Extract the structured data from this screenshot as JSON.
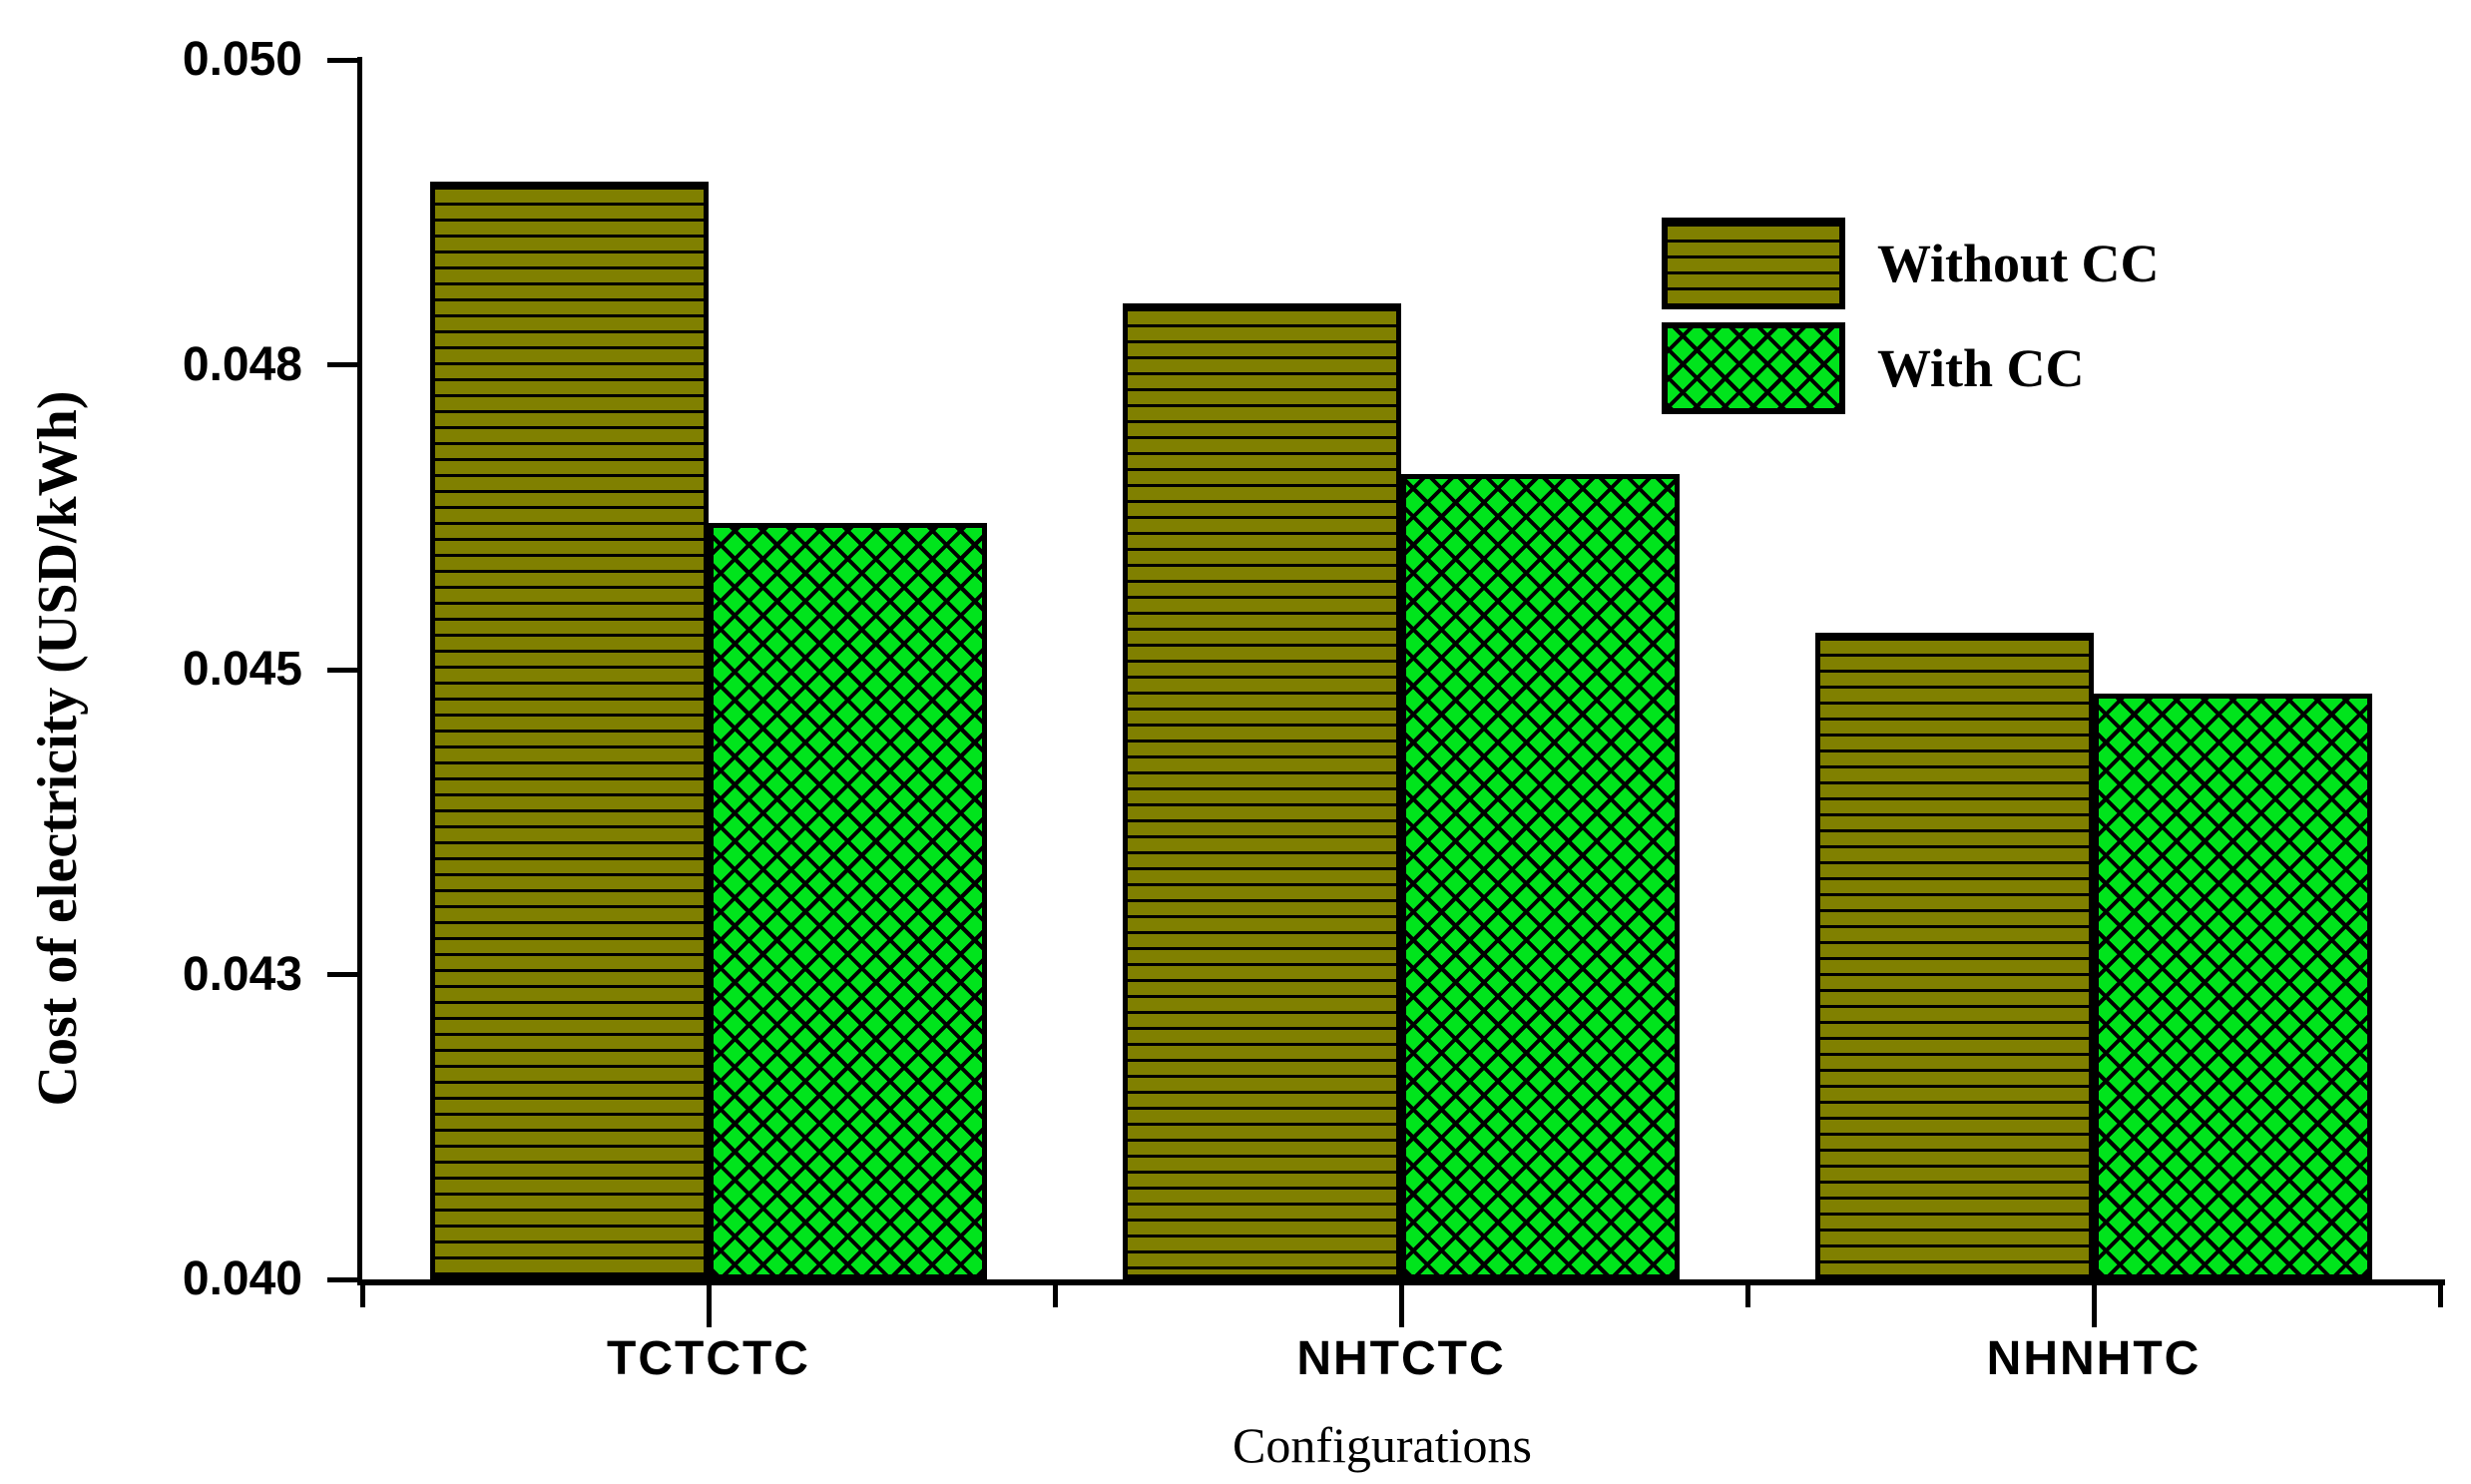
{
  "chart_data": {
    "type": "bar",
    "title": "",
    "categories": [
      "TCTCTC",
      "NHTCTC",
      "NHNHTC"
    ],
    "series": [
      {
        "name": "Without CC",
        "values": [
          0.049,
          0.048,
          0.0453
        ],
        "color": "#808000",
        "hatch": "horizontal-lines"
      },
      {
        "name": "With CC",
        "values": [
          0.0462,
          0.0466,
          0.0448
        ],
        "color": "#00E41C",
        "hatch": "diagonal-crosshatch"
      }
    ],
    "xlabel": "Configurations",
    "ylabel": "Cost of electricity (USD/kWh)",
    "ylim": [
      0.04,
      0.05
    ],
    "y_ticks": [
      {
        "value": 0.04,
        "label": "0.040"
      },
      {
        "value": 0.0425,
        "label": "0.043"
      },
      {
        "value": 0.045,
        "label": "0.045"
      },
      {
        "value": 0.0475,
        "label": "0.048"
      },
      {
        "value": 0.05,
        "label": "0.050"
      }
    ],
    "legend": {
      "position": "upper-right"
    },
    "grid": false,
    "bar_outline_color": "#000000",
    "axis_color": "#000000"
  }
}
